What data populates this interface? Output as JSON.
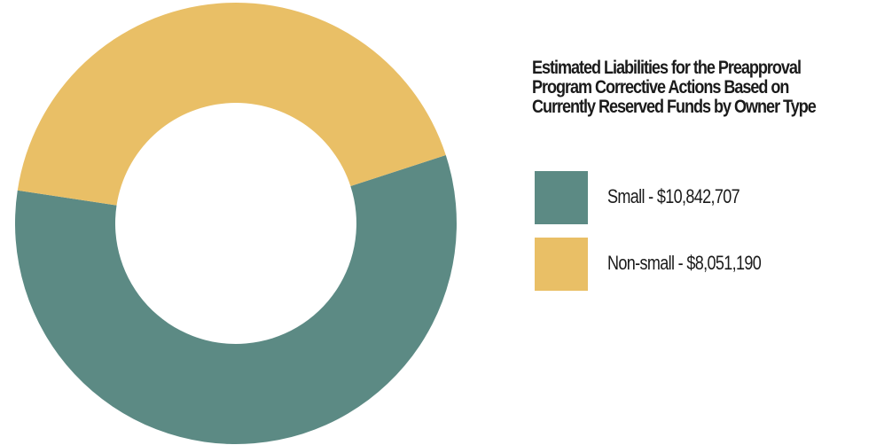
{
  "chart_data": {
    "type": "pie",
    "style": "donut",
    "title_lines": [
      "Estimated Liabilities for the Preapproval",
      "Program Corrective Actions Based on",
      "Currently Reserved Funds by Owner Type"
    ],
    "series": [
      {
        "name": "Small",
        "value": 10842707,
        "label": "Small - $10,842,707",
        "color": "#5c8a84"
      },
      {
        "name": "Non-small",
        "value": 8051190,
        "label": "Non-small - $8,051,190",
        "color": "#e9bf66"
      }
    ],
    "legend_position": "right"
  }
}
